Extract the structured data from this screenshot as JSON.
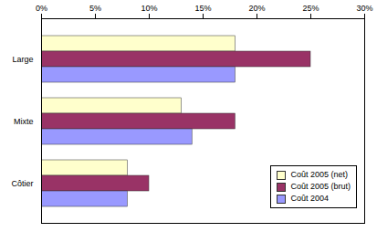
{
  "chart_data": {
    "type": "bar",
    "orientation": "horizontal",
    "categories": [
      "Large",
      "Mixte",
      "Côtier"
    ],
    "series": [
      {
        "name": "Coût 2005 (net)",
        "color": "#ffffcc",
        "values": [
          18,
          13,
          8
        ]
      },
      {
        "name": "Coût 2005 (brut)",
        "color": "#993366",
        "values": [
          25,
          18,
          10
        ]
      },
      {
        "name": "Coût 2004",
        "color": "#9999ff",
        "values": [
          18,
          14,
          8
        ]
      }
    ],
    "xlim": [
      0,
      30
    ],
    "xticks": [
      {
        "value": 0,
        "label": "0%"
      },
      {
        "value": 5,
        "label": "5%"
      },
      {
        "value": 10,
        "label": "10%"
      },
      {
        "value": 15,
        "label": "15%"
      },
      {
        "value": 20,
        "label": "20%"
      },
      {
        "value": 25,
        "label": "25%"
      },
      {
        "value": 30,
        "label": "30%"
      }
    ],
    "grid": false,
    "legend": "lower right"
  }
}
